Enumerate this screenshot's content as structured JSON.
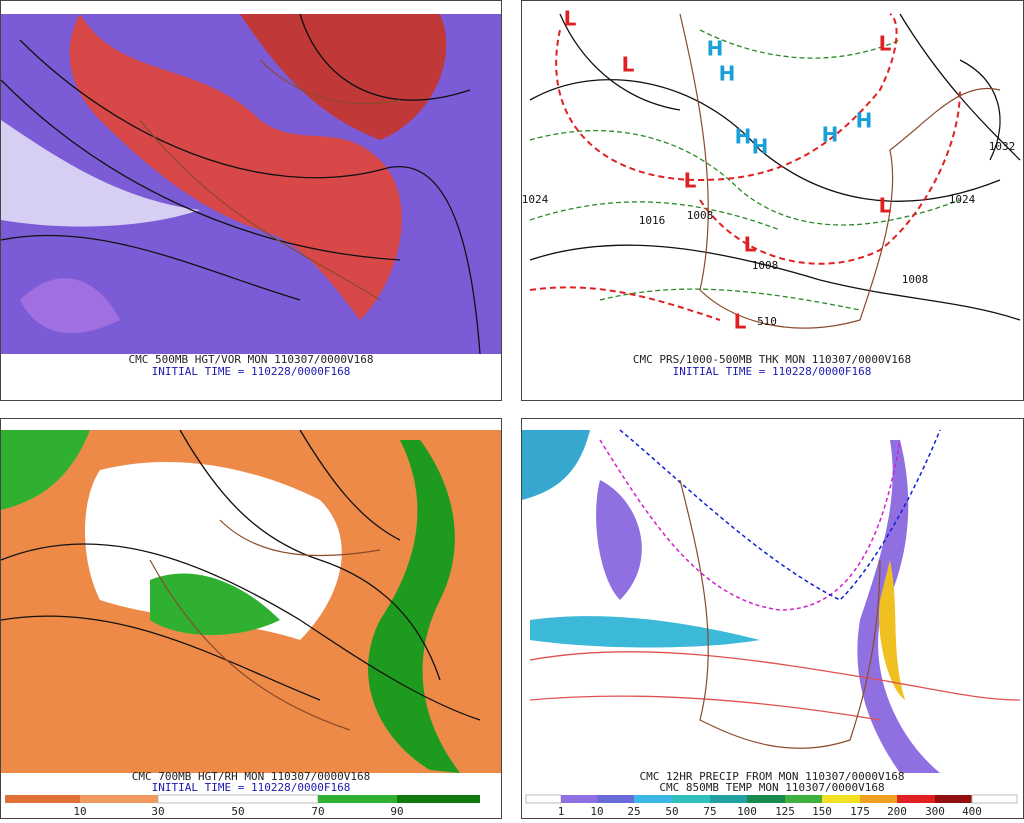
{
  "panels": [
    {
      "captions": [
        "CMC 500MB HGT/VOR MON 110307/0000V168",
        "INITIAL TIME = 110228/0000F168"
      ]
    },
    {
      "captions": [
        "CMC PRS/1000-500MB THK MON 110307/0000V168",
        "INITIAL TIME = 110228/0000F168"
      ],
      "lows": [
        "L",
        "L",
        "L",
        "L",
        "L",
        "L",
        "L"
      ],
      "highs": [
        "H",
        "H",
        "H",
        "H",
        "H",
        "H"
      ],
      "contour_labels": [
        "1032",
        "1024",
        "1024",
        "1016",
        "1008",
        "1008",
        "1008",
        "510"
      ]
    },
    {
      "captions": [
        "CMC 700MB HGT/RH MON 110307/0000V168",
        "INITIAL TIME = 110228/0000F168"
      ],
      "colorbar_labels": [
        "10",
        "30",
        "50",
        "70",
        "90"
      ]
    },
    {
      "captions": [
        "CMC 12HR PRECIP FROM MON 110307/0000V168",
        "CMC 850MB TEMP MON 110307/0000V168"
      ],
      "colorbar_labels": [
        "1",
        "10",
        "25",
        "50",
        "75",
        "100",
        "125",
        "150",
        "175",
        "200",
        "300",
        "400"
      ]
    }
  ]
}
